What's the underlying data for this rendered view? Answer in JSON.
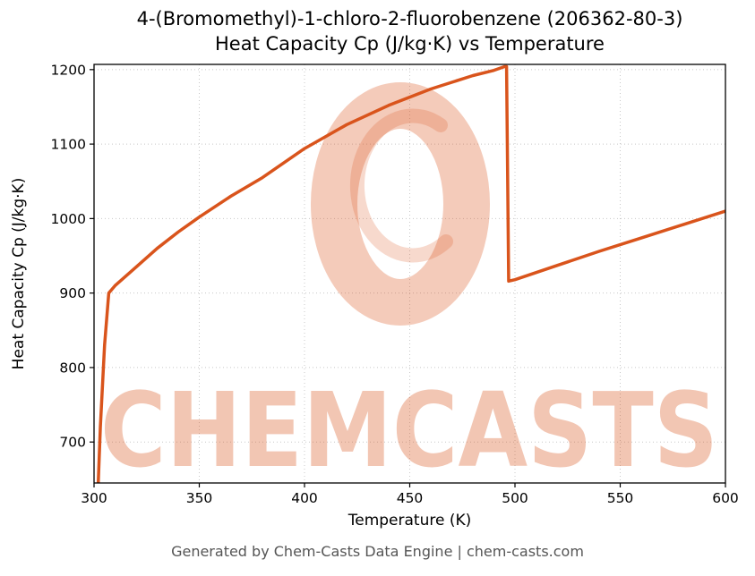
{
  "figure": {
    "title_line1": "4-(Bromomethyl)-1-chloro-2-fluorobenzene (206362-80-3)",
    "title_line2": "Heat Capacity Cp (J/kg·K) vs Temperature",
    "footer": "Generated by Chem-Casts Data Engine | chem-casts.com"
  },
  "axes": {
    "xlabel": "Temperature (K)",
    "ylabel": "Heat Capacity Cp (J/kg·K)"
  },
  "watermark": {
    "text": "CHEMCASTS",
    "logo": "c-ring-logo"
  },
  "colors": {
    "line": "#d9541c",
    "watermark": "#d9541c",
    "grid": "#c8c8c8",
    "spine": "#000000"
  },
  "chart_data": {
    "type": "line",
    "title": "4-(Bromomethyl)-1-chloro-2-fluorobenzene (206362-80-3) Heat Capacity Cp (J/kg·K) vs Temperature",
    "xlabel": "Temperature (K)",
    "ylabel": "Heat Capacity Cp (J/kg·K)",
    "xlim": [
      300,
      600
    ],
    "ylim": [
      645,
      1207
    ],
    "xticks": [
      300,
      350,
      400,
      450,
      500,
      550,
      600
    ],
    "yticks": [
      700,
      800,
      900,
      1000,
      1100,
      1200
    ],
    "grid": true,
    "legend": false,
    "series": [
      {
        "name": "Heat Capacity Cp",
        "x": [
          302,
          303,
          305,
          307,
          310,
          320,
          330,
          340,
          350,
          365,
          380,
          400,
          420,
          440,
          460,
          480,
          490,
          495,
          496,
          497,
          500,
          520,
          540,
          560,
          580,
          600
        ],
        "y": [
          645,
          720,
          830,
          900,
          910,
          935,
          960,
          982,
          1002,
          1030,
          1055,
          1094,
          1126,
          1152,
          1174,
          1192,
          1199,
          1204,
          1204,
          916,
          918,
          937,
          956,
          974,
          992,
          1010
        ]
      }
    ]
  }
}
